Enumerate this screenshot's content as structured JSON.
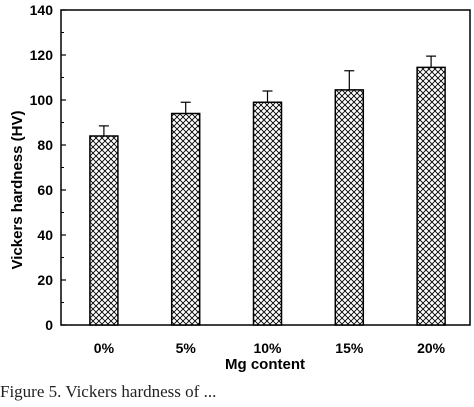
{
  "chart_data": {
    "type": "bar",
    "categories": [
      "0%",
      "5%",
      "10%",
      "15%",
      "20%"
    ],
    "values": [
      84,
      94,
      99,
      104.5,
      114.5
    ],
    "errors": [
      4.5,
      5,
      5,
      8.5,
      5
    ],
    "xlabel": "Mg content",
    "ylabel": "Vickers hardness (HV)",
    "ylim": [
      0,
      140
    ],
    "yticks": [
      "0",
      "20",
      "40",
      "60",
      "80",
      "100",
      "120",
      "140"
    ],
    "bar_fill": "crosshatch",
    "grid": false,
    "bar_color": "#000000"
  },
  "caption": "Figure 5. Vickers hardness of ..."
}
